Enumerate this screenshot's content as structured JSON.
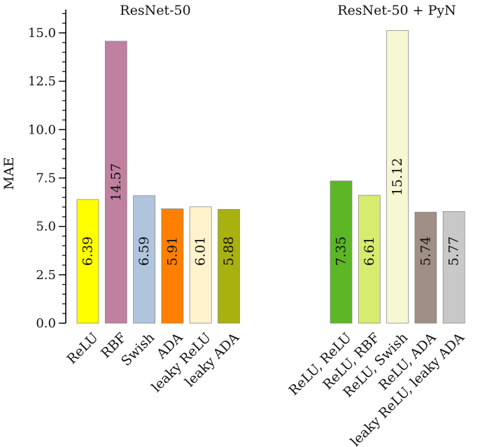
{
  "chart_data": {
    "type": "bar",
    "ylabel": "MAE",
    "ylim": [
      0,
      16.2
    ],
    "yticks": [
      0.0,
      2.5,
      5.0,
      7.5,
      10.0,
      12.5,
      15.0
    ],
    "ytick_labels": [
      "0.0",
      "2.5",
      "5.0",
      "7.5",
      "10.0",
      "12.5",
      "15.0"
    ],
    "groups": [
      {
        "title": "ResNet-50",
        "categories": [
          "ReLU",
          "RBF",
          "Swish",
          "ADA",
          "leaky ReLU",
          "leaky ADA"
        ],
        "values": [
          6.39,
          14.57,
          6.59,
          5.91,
          6.01,
          5.88
        ],
        "colors": [
          "#ffff00",
          "#c0809f",
          "#b0c4de",
          "#ff7f00",
          "#fff3cc",
          "#a8b110"
        ]
      },
      {
        "title": "ResNet-50 + PyN",
        "categories": [
          "ReLU, ReLU",
          "ReLU, RBF",
          "ReLU, Swish",
          "ReLU, ADA",
          "leaky ReLU, leaky ADA"
        ],
        "values": [
          7.35,
          6.61,
          15.12,
          5.74,
          5.77
        ],
        "colors": [
          "#5cb626",
          "#d7eb6e",
          "#f7f8d3",
          "#a08f85",
          "#c8c8c8"
        ]
      }
    ]
  }
}
